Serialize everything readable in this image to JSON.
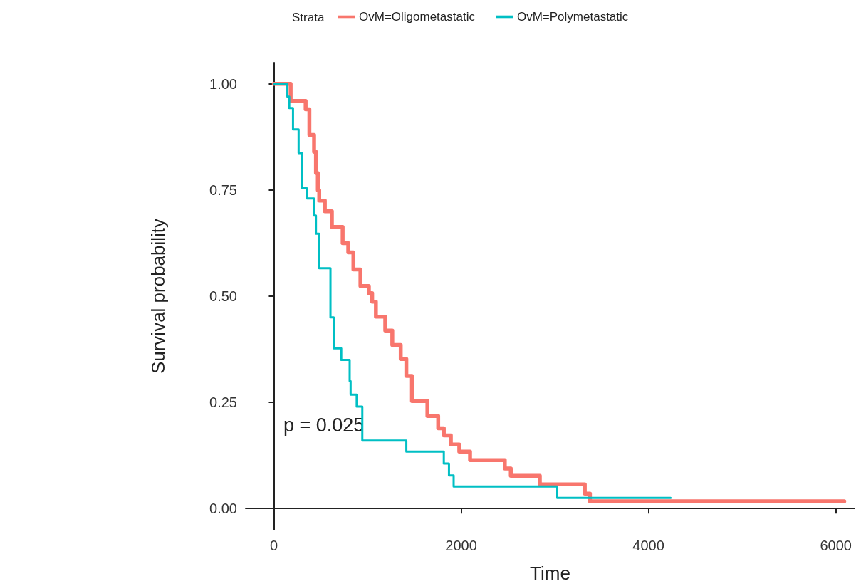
{
  "chart_data": {
    "type": "step",
    "xlabel": "Time",
    "ylabel": "Survival probability",
    "legend_title": "Strata",
    "legend": "top",
    "grid": false,
    "marker": "none",
    "line_style": "solid",
    "annotations": [
      "p = 0.025"
    ],
    "xlim": [
      -300,
      6200
    ],
    "xticks": [
      0,
      2000,
      4000,
      6000
    ],
    "ylim": [
      -0.05,
      1.05
    ],
    "yticks": [
      {
        "value": 0,
        "label": "0.00"
      },
      {
        "value": 0.25,
        "label": "0.25"
      },
      {
        "value": 0.5,
        "label": "0.50"
      },
      {
        "value": 0.75,
        "label": "0.75"
      },
      {
        "value": 1,
        "label": "1.00"
      }
    ],
    "series": [
      {
        "name": "OvM=Oligometastatic",
        "color": "#f8766d",
        "x": [
          0,
          180,
          340,
          380,
          430,
          450,
          470,
          485,
          545,
          620,
          735,
          795,
          850,
          925,
          1015,
          1050,
          1090,
          1190,
          1265,
          1355,
          1415,
          1475,
          1640,
          1755,
          1815,
          1890,
          1980,
          2095,
          2466,
          2530,
          2840,
          3320,
          3375,
          6090
        ],
        "values": [
          1,
          0.96,
          0.94,
          0.88,
          0.84,
          0.79,
          0.75,
          0.725,
          0.7,
          0.663,
          0.625,
          0.603,
          0.563,
          0.524,
          0.507,
          0.487,
          0.452,
          0.419,
          0.385,
          0.352,
          0.312,
          0.253,
          0.218,
          0.189,
          0.172,
          0.151,
          0.134,
          0.114,
          0.094,
          0.077,
          0.057,
          0.035,
          0.017,
          0.017
        ]
      },
      {
        "name": "OvM=Polymetastatic",
        "color": "#00bfc4",
        "x": [
          0,
          145,
          165,
          205,
          265,
          300,
          355,
          430,
          450,
          485,
          550,
          605,
          640,
          720,
          810,
          820,
          885,
          945,
          1415,
          1815,
          1870,
          1920,
          3026,
          4236
        ],
        "values": [
          1,
          0.97,
          0.943,
          0.893,
          0.837,
          0.754,
          0.73,
          0.69,
          0.647,
          0.566,
          0.566,
          0.45,
          0.377,
          0.35,
          0.3,
          0.268,
          0.24,
          0.16,
          0.134,
          0.106,
          0.078,
          0.052,
          0.025,
          0.025
        ]
      }
    ]
  }
}
